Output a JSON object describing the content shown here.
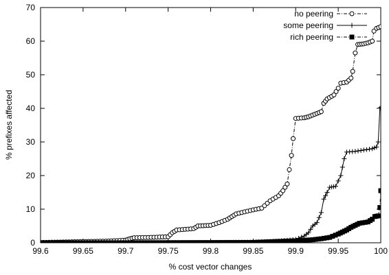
{
  "chart_data": {
    "type": "line",
    "title": "",
    "xlabel": "% cost vector changes",
    "ylabel": "% prefixes affected",
    "xlim": [
      99.6,
      100
    ],
    "ylim": [
      0,
      70
    ],
    "xticks": [
      "99.6",
      "99.65",
      "99.7",
      "99.75",
      "99.8",
      "99.85",
      "99.9",
      "99.95",
      "100"
    ],
    "yticks": [
      "0",
      "10",
      "20",
      "30",
      "40",
      "50",
      "60",
      "70"
    ],
    "grid": false,
    "legend_position": "top-right",
    "series": [
      {
        "name": "no peering",
        "marker": "circle",
        "line_style": "dash-dot",
        "color": "#000000",
        "points": [
          [
            99.6,
            0.1
          ],
          [
            99.62,
            0.2
          ],
          [
            99.64,
            0.3
          ],
          [
            99.66,
            0.4
          ],
          [
            99.68,
            0.5
          ],
          [
            99.7,
            0.8
          ],
          [
            99.705,
            1.2
          ],
          [
            99.71,
            1.5
          ],
          [
            99.73,
            1.6
          ],
          [
            99.75,
            1.8
          ],
          [
            99.755,
            3.0
          ],
          [
            99.76,
            3.8
          ],
          [
            99.77,
            4.0
          ],
          [
            99.78,
            4.2
          ],
          [
            99.785,
            5.0
          ],
          [
            99.8,
            5.2
          ],
          [
            99.81,
            6.0
          ],
          [
            99.82,
            7.0
          ],
          [
            99.825,
            7.8
          ],
          [
            99.83,
            8.6
          ],
          [
            99.84,
            9.2
          ],
          [
            99.85,
            9.8
          ],
          [
            99.86,
            10.3
          ],
          [
            99.87,
            12.5
          ],
          [
            99.88,
            14.0
          ],
          [
            99.885,
            15.5
          ],
          [
            99.89,
            17.5
          ],
          [
            99.895,
            26.0
          ],
          [
            99.897,
            31.0
          ],
          [
            99.9,
            37.0
          ],
          [
            99.91,
            37.2
          ],
          [
            99.915,
            37.5
          ],
          [
            99.92,
            38.0
          ],
          [
            99.925,
            38.5
          ],
          [
            99.93,
            39.0
          ],
          [
            99.933,
            41.5
          ],
          [
            99.937,
            42.8
          ],
          [
            99.945,
            44.0
          ],
          [
            99.95,
            46.0
          ],
          [
            99.953,
            47.5
          ],
          [
            99.96,
            47.8
          ],
          [
            99.965,
            49.0
          ],
          [
            99.967,
            51.0
          ],
          [
            99.97,
            56.5
          ],
          [
            99.973,
            59.0
          ],
          [
            99.98,
            59.2
          ],
          [
            99.985,
            59.5
          ],
          [
            99.99,
            60.0
          ],
          [
            99.992,
            63.0
          ],
          [
            99.995,
            63.8
          ],
          [
            100,
            64.3
          ]
        ]
      },
      {
        "name": "some peering",
        "marker": "plus",
        "line_style": "solid",
        "color": "#000000",
        "points": [
          [
            99.6,
            0.0
          ],
          [
            99.7,
            0.05
          ],
          [
            99.8,
            0.1
          ],
          [
            99.85,
            0.2
          ],
          [
            99.88,
            0.5
          ],
          [
            99.9,
            1.0
          ],
          [
            99.91,
            2.0
          ],
          [
            99.915,
            3.0
          ],
          [
            99.92,
            5.0
          ],
          [
            99.925,
            6.0
          ],
          [
            99.93,
            9.0
          ],
          [
            99.933,
            13.0
          ],
          [
            99.937,
            15.0
          ],
          [
            99.94,
            16.5
          ],
          [
            99.947,
            16.8
          ],
          [
            99.953,
            20.0
          ],
          [
            99.957,
            25.0
          ],
          [
            99.96,
            27.0
          ],
          [
            99.97,
            27.2
          ],
          [
            99.98,
            27.6
          ],
          [
            99.99,
            28.0
          ],
          [
            99.995,
            28.5
          ],
          [
            99.997,
            30.0
          ],
          [
            99.999,
            40.0
          ],
          [
            100,
            40.3
          ]
        ]
      },
      {
        "name": "rich peering",
        "marker": "square",
        "line_style": "dash-dot",
        "color": "#000000",
        "points": [
          [
            99.6,
            0.0
          ],
          [
            99.7,
            0.0
          ],
          [
            99.8,
            0.05
          ],
          [
            99.85,
            0.1
          ],
          [
            99.88,
            0.4
          ],
          [
            99.9,
            0.6
          ],
          [
            99.92,
            0.9
          ],
          [
            99.93,
            1.2
          ],
          [
            99.94,
            1.6
          ],
          [
            99.95,
            2.6
          ],
          [
            99.955,
            3.2
          ],
          [
            99.96,
            3.8
          ],
          [
            99.965,
            4.6
          ],
          [
            99.97,
            5.2
          ],
          [
            99.975,
            5.8
          ],
          [
            99.985,
            6.2
          ],
          [
            99.99,
            7.0
          ],
          [
            99.993,
            7.8
          ],
          [
            99.997,
            8.0
          ],
          [
            99.999,
            10.5
          ],
          [
            100,
            15.5
          ]
        ]
      }
    ]
  }
}
